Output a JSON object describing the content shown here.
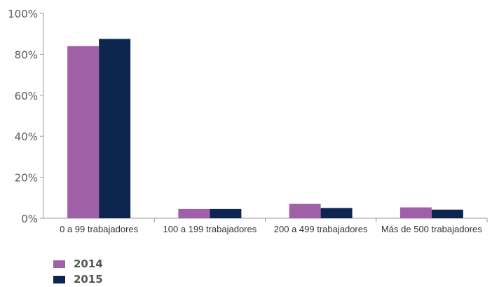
{
  "chart_data": {
    "type": "bar",
    "categories": [
      "0 a 99 trabajadores",
      "100 a 199 trabajadores",
      "200 a 499 trabajadores",
      "Más de 500 trabajadores"
    ],
    "series": [
      {
        "name": "2014",
        "color": "#a060a8",
        "values": [
          84,
          4.5,
          7,
          5.3
        ]
      },
      {
        "name": "2015",
        "color": "#0d2650",
        "values": [
          87.5,
          4.5,
          5,
          4.2
        ]
      }
    ],
    "ylim": [
      0,
      100
    ],
    "yticks": [
      "0%",
      "20%",
      "40%",
      "60%",
      "80%",
      "100%"
    ],
    "ytick_values": [
      0,
      20,
      40,
      60,
      80,
      100
    ],
    "grid": false,
    "legend_position": "bottom-left"
  }
}
